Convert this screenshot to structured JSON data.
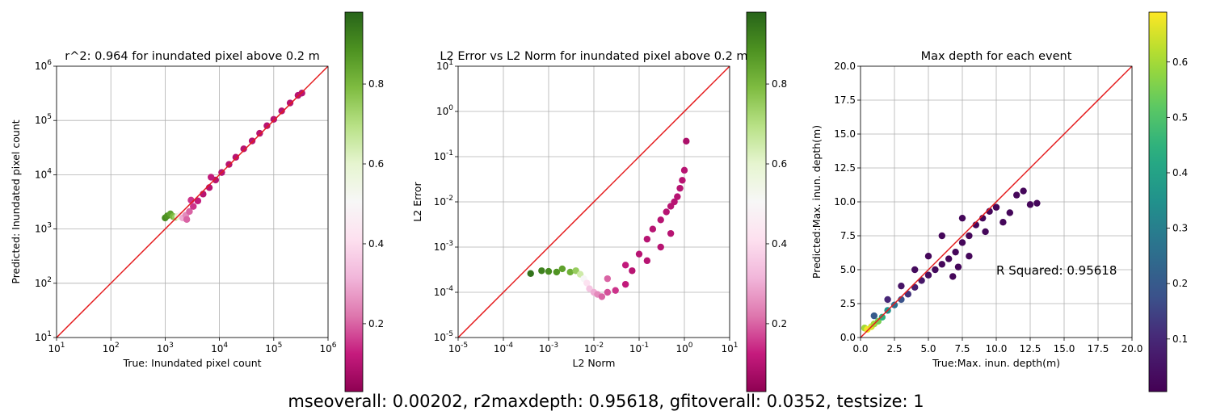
{
  "footer": "mseoverall: 0.00202, r2maxdepth: 0.95618, gfitoverall: 0.0352, testsize: 1",
  "chart_data": [
    {
      "type": "scatter",
      "title": "r^2: 0.964 for inundated pixel above 0.2 m",
      "xlabel": "True: Inundated pixel count",
      "ylabel": "Predicted: Inundated pixel count",
      "xscale": "log",
      "yscale": "log",
      "xlim": [
        10,
        1000000
      ],
      "ylim": [
        10,
        1000000
      ],
      "xticks": [
        10,
        100,
        1000,
        10000,
        100000,
        1000000
      ],
      "xtick_labels": [
        "10^1",
        "10^2",
        "10^3",
        "10^4",
        "10^5",
        "10^6"
      ],
      "yticks": [
        10,
        100,
        1000,
        10000,
        100000,
        1000000
      ],
      "ytick_labels": [
        "10^1",
        "10^2",
        "10^3",
        "10^4",
        "10^5",
        "10^6"
      ],
      "grid": true,
      "reference_line": {
        "from": [
          10,
          10
        ],
        "to": [
          1000000,
          1000000
        ],
        "color": "#e41a1c"
      },
      "colormap": "PiYG",
      "colorbar_ticks": [
        0.2,
        0.4,
        0.6,
        0.8
      ],
      "colorbar_range": [
        0.03,
        0.98
      ],
      "points": [
        [
          1000,
          1600,
          0.9
        ],
        [
          1100,
          1750,
          0.88
        ],
        [
          1250,
          1900,
          0.85
        ],
        [
          1400,
          1700,
          0.8
        ],
        [
          1550,
          1650,
          0.75
        ],
        [
          1700,
          1700,
          0.6
        ],
        [
          1900,
          1800,
          0.45
        ],
        [
          2100,
          1600,
          0.3
        ],
        [
          2400,
          1800,
          0.25
        ],
        [
          2800,
          2100,
          0.2
        ],
        [
          3300,
          2600,
          0.15
        ],
        [
          4000,
          3300,
          0.12
        ],
        [
          5000,
          4400,
          0.1
        ],
        [
          6500,
          5800,
          0.1
        ],
        [
          8500,
          8000,
          0.1
        ],
        [
          11000,
          11000,
          0.1
        ],
        [
          15000,
          15500,
          0.1
        ],
        [
          20000,
          21000,
          0.1
        ],
        [
          28000,
          30000,
          0.1
        ],
        [
          40000,
          42000,
          0.1
        ],
        [
          55000,
          58000,
          0.1
        ],
        [
          75000,
          80000,
          0.1
        ],
        [
          100000,
          105000,
          0.1
        ],
        [
          140000,
          150000,
          0.1
        ],
        [
          200000,
          210000,
          0.1
        ],
        [
          280000,
          290000,
          0.1
        ],
        [
          330000,
          320000,
          0.1
        ],
        [
          3000,
          3400,
          0.15
        ],
        [
          2500,
          1500,
          0.2
        ],
        [
          7000,
          9000,
          0.12
        ]
      ]
    },
    {
      "type": "scatter",
      "title": "L2 Error vs L2 Norm for inundated pixel above 0.2 m",
      "xlabel": "L2 Norm",
      "ylabel": "L2 Error",
      "xscale": "log",
      "yscale": "log",
      "xlim": [
        1e-05,
        10
      ],
      "ylim": [
        1e-05,
        10
      ],
      "xticks": [
        1e-05,
        0.0001,
        0.001,
        0.01,
        0.1,
        1,
        10
      ],
      "xtick_labels": [
        "10^-5",
        "10^-4",
        "10^-3",
        "10^-2",
        "10^-1",
        "10^0",
        "10^1"
      ],
      "yticks": [
        1e-05,
        0.0001,
        0.001,
        0.01,
        0.1,
        1,
        10
      ],
      "ytick_labels": [
        "10^-5",
        "10^-4",
        "10^-3",
        "10^-2",
        "10^-1",
        "10^0",
        "10^1"
      ],
      "grid": true,
      "reference_line": {
        "from": [
          1e-05,
          1e-05
        ],
        "to": [
          10,
          10
        ],
        "color": "#e41a1c"
      },
      "colormap": "PiYG",
      "colorbar_ticks": [
        0.2,
        0.4,
        0.6,
        0.8
      ],
      "colorbar_range": [
        0.03,
        0.98
      ],
      "points": [
        [
          0.0004,
          0.00026,
          0.95
        ],
        [
          0.0007,
          0.0003,
          0.92
        ],
        [
          0.001,
          0.00029,
          0.9
        ],
        [
          0.0015,
          0.00028,
          0.88
        ],
        [
          0.002,
          0.00033,
          0.85
        ],
        [
          0.003,
          0.00028,
          0.82
        ],
        [
          0.004,
          0.0003,
          0.75
        ],
        [
          0.005,
          0.00025,
          0.65
        ],
        [
          0.006,
          0.0002,
          0.5
        ],
        [
          0.007,
          0.00016,
          0.42
        ],
        [
          0.008,
          0.00012,
          0.35
        ],
        [
          0.01,
          0.0001,
          0.3
        ],
        [
          0.012,
          9e-05,
          0.25
        ],
        [
          0.015,
          8e-05,
          0.2
        ],
        [
          0.02,
          0.0001,
          0.18
        ],
        [
          0.03,
          0.00011,
          0.15
        ],
        [
          0.05,
          0.00015,
          0.12
        ],
        [
          0.07,
          0.0003,
          0.1
        ],
        [
          0.1,
          0.0007,
          0.1
        ],
        [
          0.15,
          0.0015,
          0.1
        ],
        [
          0.2,
          0.0025,
          0.1
        ],
        [
          0.3,
          0.004,
          0.1
        ],
        [
          0.4,
          0.006,
          0.1
        ],
        [
          0.5,
          0.008,
          0.1
        ],
        [
          0.6,
          0.01,
          0.1
        ],
        [
          0.7,
          0.013,
          0.1
        ],
        [
          0.8,
          0.02,
          0.1
        ],
        [
          0.9,
          0.03,
          0.1
        ],
        [
          1.0,
          0.05,
          0.1
        ],
        [
          1.1,
          0.22,
          0.08
        ],
        [
          0.3,
          0.001,
          0.1
        ],
        [
          0.5,
          0.002,
          0.1
        ],
        [
          0.05,
          0.0004,
          0.12
        ],
        [
          0.02,
          0.0002,
          0.2
        ],
        [
          0.15,
          0.0005,
          0.1
        ]
      ]
    },
    {
      "type": "scatter",
      "title": "Max depth for each event",
      "xlabel": "True:Max. inun. depth(m)",
      "ylabel": "Predicted:Max. inun. depth(m)",
      "xlim": [
        0,
        20
      ],
      "ylim": [
        0,
        20
      ],
      "xticks": [
        0,
        2.5,
        5,
        7.5,
        10,
        12.5,
        15,
        17.5,
        20
      ],
      "xtick_labels": [
        "0.0",
        "2.5",
        "5.0",
        "7.5",
        "10.0",
        "12.5",
        "15.0",
        "17.5",
        "20.0"
      ],
      "yticks": [
        0,
        2.5,
        5,
        7.5,
        10,
        12.5,
        15,
        17.5,
        20
      ],
      "ytick_labels": [
        "0.0",
        "2.5",
        "5.0",
        "7.5",
        "10.0",
        "12.5",
        "15.0",
        "17.5",
        "20.0"
      ],
      "grid": true,
      "reference_line": {
        "from": [
          0,
          0
        ],
        "to": [
          20,
          20
        ],
        "color": "#e41a1c"
      },
      "annotation": {
        "text": "R Squared: 0.95618",
        "x": 10,
        "y": 5
      },
      "colormap": "viridis",
      "colorbar_ticks": [
        0.1,
        0.2,
        0.3,
        0.4,
        0.5,
        0.6
      ],
      "colorbar_range": [
        0.005,
        0.69
      ],
      "points": [
        [
          0.3,
          0.7,
          0.6
        ],
        [
          0.5,
          0.6,
          0.68
        ],
        [
          0.8,
          0.8,
          0.65
        ],
        [
          1.0,
          1.0,
          0.6
        ],
        [
          1.3,
          1.2,
          0.55
        ],
        [
          1.6,
          1.5,
          0.45
        ],
        [
          2.0,
          2.0,
          0.35
        ],
        [
          2.5,
          2.4,
          0.25
        ],
        [
          3.0,
          2.8,
          0.18
        ],
        [
          3.5,
          3.2,
          0.12
        ],
        [
          4.0,
          3.7,
          0.08
        ],
        [
          4.5,
          4.2,
          0.06
        ],
        [
          5.0,
          4.6,
          0.04
        ],
        [
          5.5,
          5.0,
          0.03
        ],
        [
          6.0,
          5.4,
          0.02
        ],
        [
          6.5,
          5.8,
          0.02
        ],
        [
          7.0,
          6.3,
          0.02
        ],
        [
          7.5,
          7.0,
          0.02
        ],
        [
          8.0,
          7.5,
          0.02
        ],
        [
          8.5,
          8.3,
          0.02
        ],
        [
          9.0,
          8.8,
          0.02
        ],
        [
          9.5,
          9.3,
          0.02
        ],
        [
          10.0,
          9.6,
          0.02
        ],
        [
          10.5,
          8.5,
          0.02
        ],
        [
          11.0,
          9.2,
          0.02
        ],
        [
          11.5,
          10.5,
          0.02
        ],
        [
          12.0,
          10.8,
          0.02
        ],
        [
          12.5,
          9.8,
          0.02
        ],
        [
          13.0,
          9.9,
          0.02
        ],
        [
          7.5,
          8.8,
          0.02
        ],
        [
          6.0,
          7.5,
          0.02
        ],
        [
          8.0,
          6.0,
          0.02
        ],
        [
          5.0,
          6.0,
          0.02
        ],
        [
          4.0,
          5.0,
          0.03
        ],
        [
          3.0,
          3.8,
          0.05
        ],
        [
          6.8,
          4.5,
          0.02
        ],
        [
          7.2,
          5.2,
          0.02
        ],
        [
          2.0,
          2.8,
          0.1
        ],
        [
          1.0,
          1.6,
          0.2
        ],
        [
          9.2,
          7.8,
          0.02
        ]
      ]
    }
  ]
}
